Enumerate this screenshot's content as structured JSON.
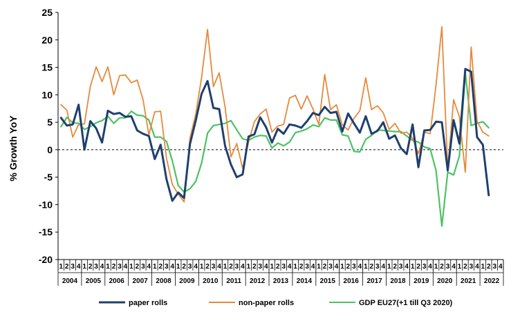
{
  "chart_data": {
    "type": "line",
    "title": "",
    "ylabel": "% Growth YoY",
    "xlabel": "",
    "ylim": [
      -20,
      25
    ],
    "yticks": [
      25,
      20,
      15,
      10,
      5,
      0,
      -5,
      -10,
      -15,
      -20
    ],
    "grid": false,
    "legend_position": "bottom",
    "years": [
      "2004",
      "2005",
      "2006",
      "2007",
      "2008",
      "2009",
      "2010",
      "2011",
      "2012",
      "2013",
      "2014",
      "2015",
      "2016",
      "2017",
      "2018",
      "2019",
      "2020",
      "2021",
      "2022"
    ],
    "quarter_labels": [
      "1",
      "2",
      "3",
      "4"
    ],
    "colors": {
      "paper": "#1f3f6e",
      "nonpaper": "#e6893a",
      "gdp": "#4cc264",
      "zero": "#000000"
    },
    "series": [
      {
        "name": "paper rolls",
        "key": "paper",
        "values": [
          5.8,
          4.4,
          4.6,
          8.2,
          0.0,
          5.2,
          3.9,
          1.3,
          7.1,
          6.5,
          6.7,
          6.0,
          6.1,
          3.5,
          2.9,
          2.5,
          -1.7,
          0.9,
          -5.4,
          -9.3,
          -7.8,
          -8.8,
          1.0,
          5.3,
          10.2,
          12.5,
          7.6,
          7.4,
          0.7,
          -2.7,
          -5.0,
          -4.5,
          2.4,
          2.8,
          5.9,
          4.1,
          1.3,
          3.8,
          2.9,
          4.6,
          4.4,
          4.0,
          5.2,
          6.7,
          6.3,
          7.8,
          6.7,
          6.9,
          3.3,
          6.6,
          4.8,
          3.1,
          6.1,
          2.9,
          3.4,
          5.0,
          2.0,
          2.6,
          0.3,
          -0.8,
          4.6,
          -3.2,
          3.5,
          3.6,
          5.1,
          5.0,
          -3.8,
          5.4,
          1.1,
          14.7,
          14.2,
          2.3,
          0.9,
          -8.3
        ],
        "points_count": 74
      },
      {
        "name": "non-paper rolls",
        "key": "nonpaper",
        "values": [
          8.2,
          7.2,
          2.3,
          4.6,
          4.7,
          11.5,
          15.1,
          12.4,
          15.1,
          10.0,
          13.5,
          13.6,
          12.2,
          12.7,
          9.1,
          2.7,
          6.9,
          7.0,
          -1.6,
          -6.3,
          -8.1,
          -9.5,
          2.1,
          6.5,
          13.2,
          21.9,
          11.5,
          14.0,
          7.8,
          -1.3,
          1.1,
          -3.4,
          1.4,
          5.1,
          6.5,
          7.4,
          3.2,
          4.3,
          4.6,
          9.4,
          9.9,
          7.4,
          9.8,
          7.4,
          4.6,
          13.7,
          7.3,
          8.2,
          4.5,
          3.6,
          5.7,
          7.1,
          13.1,
          7.3,
          8.0,
          6.7,
          3.7,
          4.8,
          3.0,
          3.2,
          2.1,
          -0.7,
          3.2,
          2.9,
          11.8,
          22.4,
          -3.6,
          9.1,
          6.0,
          -4.1,
          18.7,
          5.2,
          3.2,
          2.5
        ],
        "points_count": 74
      },
      {
        "name": "GDP EU27(+1 till Q3 2020)",
        "key": "gdp",
        "values": [
          4.2,
          5.9,
          4.9,
          4.8,
          3.7,
          4.2,
          4.9,
          5.3,
          6.1,
          4.8,
          5.8,
          5.8,
          7.0,
          6.3,
          6.2,
          5.4,
          2.3,
          2.3,
          1.5,
          -2.0,
          -6.5,
          -7.7,
          -7.1,
          -5.8,
          -2.4,
          3.0,
          4.4,
          4.6,
          4.8,
          5.3,
          3.6,
          2.0,
          1.7,
          2.3,
          2.6,
          2.5,
          0.3,
          1.2,
          0.7,
          1.4,
          3.1,
          3.4,
          3.8,
          4.5,
          4.2,
          5.8,
          5.4,
          5.4,
          2.7,
          2.5,
          -0.3,
          -0.4,
          1.9,
          2.6,
          3.6,
          3.5,
          3.4,
          3.3,
          3.3,
          2.5,
          1.7,
          1.4,
          0.5,
          0.2,
          -3.8,
          -13.9,
          -4.1,
          -4.6,
          -1.1,
          14.0,
          4.4,
          4.8,
          5.1,
          4.0
        ],
        "points_count": 74
      }
    ]
  }
}
